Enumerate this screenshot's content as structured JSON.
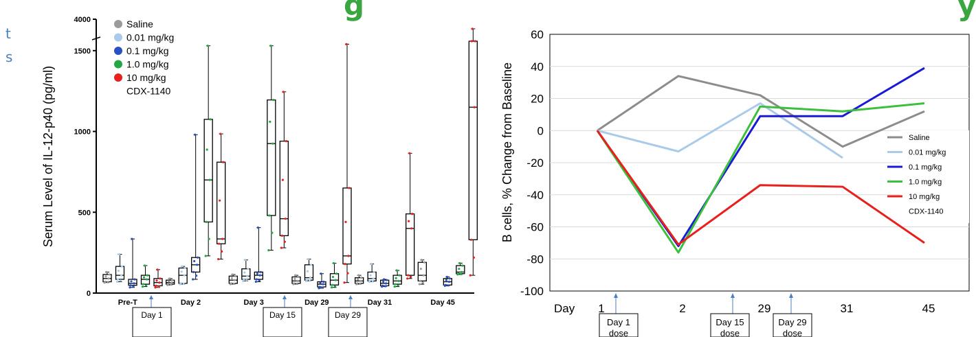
{
  "banner": {
    "left_fragment": "g",
    "right_fragment": "y"
  },
  "side_fragments": [
    "t",
    "s"
  ],
  "chart_data": [
    {
      "type": "box",
      "ylabel": "Serum Level of IL-12-p40 (pg/ml)",
      "yticks": [
        0,
        500,
        1000,
        1500,
        4000
      ],
      "ylim": [
        0,
        4000
      ],
      "y_axis_break": [
        1550,
        3900
      ],
      "legend": {
        "placement": "top-left",
        "entries": [
          {
            "label": "Saline",
            "color": "#9a9a9a"
          },
          {
            "label": "0.01 mg/kg",
            "color": "#a9cbe9"
          },
          {
            "label": "0.1 mg/kg",
            "color": "#2a51c4"
          },
          {
            "label": "1.0 mg/kg",
            "color": "#22a843"
          },
          {
            "label": "10 mg/kg",
            "color": "#e8201d"
          }
        ],
        "footer": "CDX-1140"
      },
      "categories": [
        "Pre-T",
        "Day 2",
        "Day 3",
        "Day 29",
        "Day 31",
        "Day 45"
      ],
      "groups": [
        {
          "category": "Pre-T",
          "boxes": [
            {
              "series": "Saline",
              "min": 65,
              "q1": 70,
              "median": 90,
              "q3": 115,
              "max": 130
            },
            {
              "series": "0.01 mg/kg",
              "min": 70,
              "q1": 85,
              "median": 110,
              "q3": 165,
              "max": 240
            },
            {
              "series": "0.1 mg/kg",
              "min": 35,
              "q1": 48,
              "median": 60,
              "q3": 85,
              "max": 335
            },
            {
              "series": "1.0 mg/kg",
              "min": 40,
              "q1": 55,
              "median": 85,
              "q3": 110,
              "max": 170
            },
            {
              "series": "10 mg/kg",
              "min": 35,
              "q1": 45,
              "median": 65,
              "q3": 90,
              "max": 145
            }
          ]
        },
        {
          "category": "Day 2",
          "boxes": [
            {
              "series": "Saline",
              "min": 50,
              "q1": 55,
              "median": 65,
              "q3": 80,
              "max": 90
            },
            {
              "series": "0.01 mg/kg",
              "min": 55,
              "q1": 60,
              "median": 110,
              "q3": 155,
              "max": 165
            },
            {
              "series": "0.1 mg/kg",
              "min": 85,
              "q1": 130,
              "median": 175,
              "q3": 220,
              "max": 980
            },
            {
              "series": "1.0 mg/kg",
              "min": 230,
              "q1": 440,
              "median": 700,
              "q3": 1075,
              "max": 1530
            },
            {
              "series": "10 mg/kg",
              "min": 210,
              "q1": 305,
              "median": 335,
              "q3": 810,
              "max": 985
            }
          ]
        },
        {
          "category": "Day 3",
          "boxes": [
            {
              "series": "Saline",
              "min": 55,
              "q1": 60,
              "median": 80,
              "q3": 105,
              "max": 115
            },
            {
              "series": "0.01 mg/kg",
              "min": 75,
              "q1": 85,
              "median": 105,
              "q3": 150,
              "max": 205
            },
            {
              "series": "0.1 mg/kg",
              "min": 70,
              "q1": 85,
              "median": 110,
              "q3": 130,
              "max": 405
            },
            {
              "series": "1.0 mg/kg",
              "min": 265,
              "q1": 480,
              "median": 925,
              "q3": 1195,
              "max": 1530
            },
            {
              "series": "10 mg/kg",
              "min": 280,
              "q1": 355,
              "median": 460,
              "q3": 940,
              "max": 1245
            }
          ]
        },
        {
          "category": "Day 29",
          "boxes": [
            {
              "series": "Saline",
              "min": 55,
              "q1": 60,
              "median": 75,
              "q3": 100,
              "max": 110
            },
            {
              "series": "0.01 mg/kg",
              "min": 75,
              "q1": 80,
              "median": 95,
              "q3": 175,
              "max": 210
            },
            {
              "series": "0.1 mg/kg",
              "min": 30,
              "q1": 38,
              "median": 55,
              "q3": 70,
              "max": 120
            },
            {
              "series": "1.0 mg/kg",
              "min": 35,
              "q1": 50,
              "median": 80,
              "q3": 120,
              "max": 185
            },
            {
              "series": "10 mg/kg",
              "min": 65,
              "q1": 180,
              "median": 230,
              "q3": 650,
              "max": 1540
            }
          ]
        },
        {
          "category": "Day 31",
          "boxes": [
            {
              "series": "Saline",
              "min": 55,
              "q1": 60,
              "median": 75,
              "q3": 95,
              "max": 110
            },
            {
              "series": "0.01 mg/kg",
              "min": 70,
              "q1": 75,
              "median": 90,
              "q3": 130,
              "max": 180
            },
            {
              "series": "0.1 mg/kg",
              "min": 40,
              "q1": 45,
              "median": 60,
              "q3": 80,
              "max": 85
            },
            {
              "series": "1.0 mg/kg",
              "min": 40,
              "q1": 55,
              "median": 75,
              "q3": 110,
              "max": 140
            },
            {
              "series": "10 mg/kg",
              "min": 90,
              "q1": 110,
              "median": 400,
              "q3": 490,
              "max": 865
            }
          ]
        },
        {
          "category": "Day 45",
          "boxes": [
            {
              "series": "Saline",
              "min": 55,
              "q1": 75,
              "median": 110,
              "q3": 190,
              "max": 205
            },
            {
              "series": "0.1 mg/kg",
              "min": 45,
              "q1": 50,
              "median": 70,
              "q3": 90,
              "max": 100
            },
            {
              "series": "1.0 mg/kg",
              "min": 115,
              "q1": 120,
              "median": 130,
              "q3": 170,
              "max": 185
            },
            {
              "series": "10 mg/kg",
              "min": 110,
              "q1": 330,
              "median": 1150,
              "q3": 3600,
              "max": 3950
            }
          ]
        }
      ],
      "annotations": [
        {
          "label": "Day 1",
          "after_category": "Pre-T"
        },
        {
          "label": "Day 15",
          "after_category": "Day 3"
        },
        {
          "label": "Day 29",
          "after_category": "Day 29"
        }
      ]
    },
    {
      "type": "line",
      "ylabel": "B cells, % Change from Baseline",
      "x_axis_title": "Day",
      "categories": [
        "1",
        "2",
        "29",
        "31",
        "45"
      ],
      "ylim": [
        -100,
        60
      ],
      "yticks": [
        -100,
        -80,
        -60,
        -40,
        -20,
        0,
        20,
        40,
        60
      ],
      "grid": true,
      "legend": {
        "placement": "right",
        "footer": "CDX-1140"
      },
      "series": [
        {
          "name": "Saline",
          "color": "#8c8c8c",
          "values": [
            0,
            34,
            22,
            -10,
            12
          ]
        },
        {
          "name": "0.01 mg/kg",
          "color": "#a9cbe9",
          "values": [
            0,
            -13,
            17,
            -17,
            null
          ]
        },
        {
          "name": "0.1 mg/kg",
          "color": "#1a1ad6",
          "values": [
            0,
            -72,
            9,
            9,
            39
          ]
        },
        {
          "name": "1.0 mg/kg",
          "color": "#3cbf3c",
          "values": [
            0,
            -76,
            15,
            12,
            17
          ]
        },
        {
          "name": "10 mg/kg",
          "color": "#e8201d",
          "values": [
            0,
            -71,
            -34,
            -35,
            -70
          ]
        }
      ],
      "annotations": [
        {
          "label": "Day 1",
          "text2": "dose",
          "at": "1"
        },
        {
          "label": "Day 15",
          "text2": "dose",
          "between": [
            "2",
            "29"
          ]
        },
        {
          "label": "Day 29",
          "text2": "dose",
          "between": [
            "29",
            "31"
          ]
        }
      ]
    }
  ]
}
